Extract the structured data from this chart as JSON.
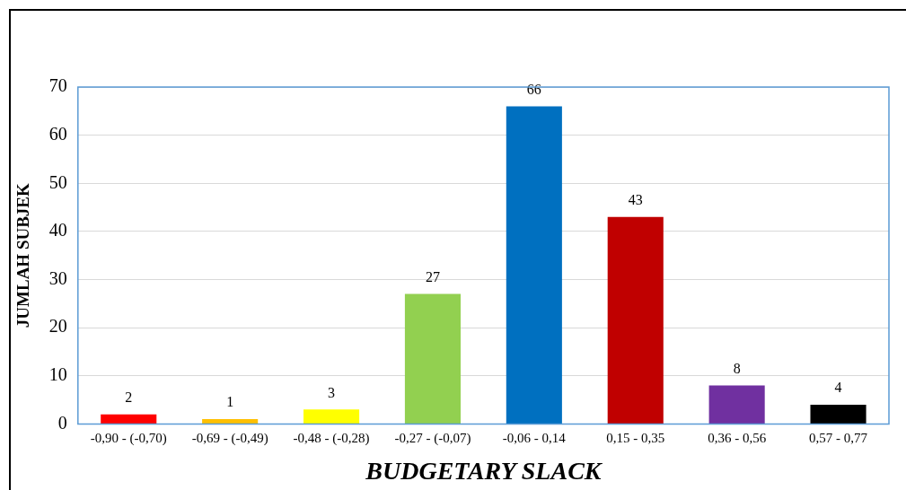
{
  "chart_data": {
    "type": "bar",
    "xlabel": "BUDGETARY SLACK",
    "ylabel": "JUMLAH SUBJEK",
    "categories": [
      "-0,90 - (-0,70)",
      "-0,69 - (-0,49)",
      "-0,48 - (-0,28)",
      "-0,27 - (-0,07)",
      "-0,06 - 0,14",
      "0,15 - 0,35",
      "0,36 - 0,56",
      "0,57 - 0,77"
    ],
    "values": [
      2,
      1,
      3,
      27,
      66,
      43,
      8,
      4
    ],
    "colors": [
      "#ff0000",
      "#ffc000",
      "#ffff00",
      "#92d050",
      "#0070c0",
      "#c00000",
      "#7030a0",
      "#000000"
    ],
    "ylim": [
      0,
      70
    ],
    "yticks": [
      0,
      10,
      20,
      30,
      40,
      50,
      60,
      70
    ],
    "grid": "y",
    "data_labels": true,
    "legend": false
  }
}
